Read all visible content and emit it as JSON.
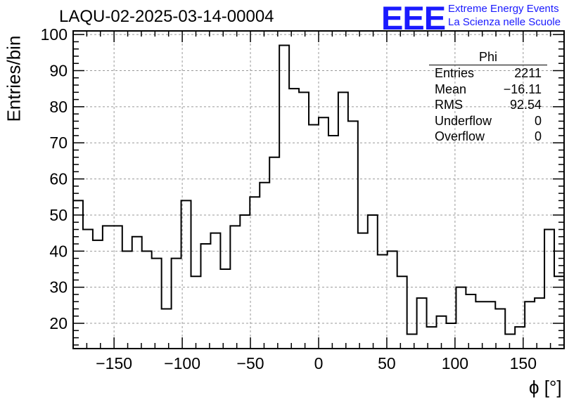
{
  "chart_data": {
    "type": "histogram",
    "title": "LAQU-02-2025-03-14-00004",
    "xlabel": "ϕ [°]",
    "ylabel": "Entries/bin",
    "xlim": [
      -180,
      180
    ],
    "ylim": [
      13,
      101
    ],
    "bin_width": 7.2,
    "x_ticks": [
      -150,
      -100,
      -50,
      0,
      50,
      100,
      150
    ],
    "x_tick_labels": [
      "−150",
      "−100",
      "−50",
      "0",
      "50",
      "100",
      "150"
    ],
    "y_ticks": [
      20,
      30,
      40,
      50,
      60,
      70,
      80,
      90,
      100
    ],
    "grid": true,
    "bin_contents": [
      54,
      46,
      43,
      47,
      47,
      40,
      44,
      40,
      38,
      24,
      38,
      54,
      33,
      42,
      45,
      35,
      47,
      50,
      55,
      59,
      66,
      97,
      85,
      84,
      75,
      77,
      72,
      84,
      76,
      45,
      50,
      39,
      40,
      33,
      17,
      27,
      19,
      22,
      20,
      30,
      28,
      26,
      26,
      24,
      17,
      19,
      26,
      27,
      46,
      33
    ],
    "stats": {
      "name": "Phi",
      "rows": [
        {
          "label": "Entries",
          "value": "2211"
        },
        {
          "label": "Mean",
          "value": "−16.11"
        },
        {
          "label": "RMS",
          "value": "92.54"
        },
        {
          "label": "Underflow",
          "value": "0"
        },
        {
          "label": "Overflow",
          "value": "0"
        }
      ]
    }
  },
  "logo": {
    "mark": "EEE",
    "line1": "Extreme Energy Events",
    "line2": "La Scienza nelle Scuole"
  }
}
